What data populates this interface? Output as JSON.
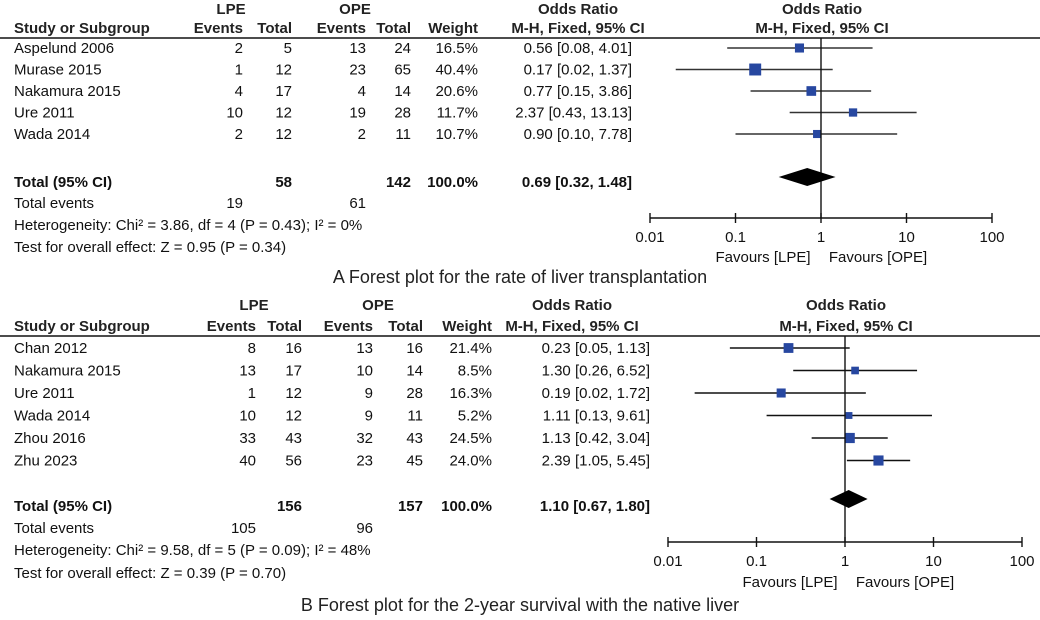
{
  "chart_data": [
    {
      "type": "forest",
      "caption": "A Forest plot for the rate of liver transplantation",
      "headers": {
        "group_lpe": "LPE",
        "group_ope": "OPE",
        "study": "Study or Subgroup",
        "events_lpe": "Events",
        "total_lpe": "Total",
        "events_ope": "Events",
        "total_ope": "Total",
        "weight": "Weight",
        "or_top": "Odds Ratio",
        "or_sub": "M-H, Fixed, 95% CI",
        "plot_top": "Odds Ratio",
        "plot_sub": "M-H, Fixed, 95% CI"
      },
      "studies": [
        {
          "name": "Aspelund 2006",
          "e1": "2",
          "n1": "5",
          "e2": "13",
          "n2": "24",
          "weight": "16.5%",
          "ci_text": "0.56 [0.08, 4.01]",
          "or": 0.56,
          "lo": 0.08,
          "hi": 4.01,
          "w": 16.5
        },
        {
          "name": "Murase 2015",
          "e1": "1",
          "n1": "12",
          "e2": "23",
          "n2": "65",
          "weight": "40.4%",
          "ci_text": "0.17 [0.02, 1.37]",
          "or": 0.17,
          "lo": 0.02,
          "hi": 1.37,
          "w": 40.4
        },
        {
          "name": "Nakamura 2015",
          "e1": "4",
          "n1": "17",
          "e2": "4",
          "n2": "14",
          "weight": "20.6%",
          "ci_text": "0.77 [0.15, 3.86]",
          "or": 0.77,
          "lo": 0.15,
          "hi": 3.86,
          "w": 20.6
        },
        {
          "name": "Ure 2011",
          "e1": "10",
          "n1": "12",
          "e2": "19",
          "n2": "28",
          "weight": "11.7%",
          "ci_text": "2.37 [0.43, 13.13]",
          "or": 2.37,
          "lo": 0.43,
          "hi": 13.13,
          "w": 11.7
        },
        {
          "name": "Wada 2014",
          "e1": "2",
          "n1": "12",
          "e2": "2",
          "n2": "11",
          "weight": "10.7%",
          "ci_text": "0.90 [0.10, 7.78]",
          "or": 0.9,
          "lo": 0.1,
          "hi": 7.78,
          "w": 10.7
        }
      ],
      "total": {
        "label": "Total (95% CI)",
        "n1": "58",
        "n2": "142",
        "weight": "100.0%",
        "ci_text": "0.69 [0.32, 1.48]",
        "or": 0.69,
        "lo": 0.32,
        "hi": 1.48
      },
      "total_events": {
        "label": "Total events",
        "e1": "19",
        "e2": "61"
      },
      "heterogeneity": "Heterogeneity: Chi² = 3.86, df = 4 (P = 0.43); I² = 0%",
      "overall_effect": "Test for overall effect: Z = 0.95 (P = 0.34)",
      "axis": {
        "scale": "log",
        "ticks": [
          0.01,
          0.1,
          1,
          10,
          100
        ],
        "tick_labels": [
          "0.01",
          "0.1",
          "1",
          "10",
          "100"
        ]
      },
      "favours_left": "Favours [LPE]",
      "favours_right": "Favours [OPE]"
    },
    {
      "type": "forest",
      "caption": "B Forest plot for the 2-year survival with the native liver",
      "headers": {
        "group_lpe": "LPE",
        "group_ope": "OPE",
        "study": "Study or Subgroup",
        "events_lpe": "Events",
        "total_lpe": "Total",
        "events_ope": "Events",
        "total_ope": "Total",
        "weight": "Weight",
        "or_top": "Odds Ratio",
        "or_sub": "M-H, Fixed, 95% CI",
        "plot_top": "Odds Ratio",
        "plot_sub": "M-H, Fixed, 95% CI"
      },
      "studies": [
        {
          "name": "Chan 2012",
          "e1": "8",
          "n1": "16",
          "e2": "13",
          "n2": "16",
          "weight": "21.4%",
          "ci_text": "0.23 [0.05, 1.13]",
          "or": 0.23,
          "lo": 0.05,
          "hi": 1.13,
          "w": 21.4
        },
        {
          "name": "Nakamura 2015",
          "e1": "13",
          "n1": "17",
          "e2": "10",
          "n2": "14",
          "weight": "8.5%",
          "ci_text": "1.30 [0.26, 6.52]",
          "or": 1.3,
          "lo": 0.26,
          "hi": 6.52,
          "w": 8.5
        },
        {
          "name": "Ure 2011",
          "e1": "1",
          "n1": "12",
          "e2": "9",
          "n2": "28",
          "weight": "16.3%",
          "ci_text": "0.19 [0.02, 1.72]",
          "or": 0.19,
          "lo": 0.02,
          "hi": 1.72,
          "w": 16.3
        },
        {
          "name": "Wada 2014",
          "e1": "10",
          "n1": "12",
          "e2": "9",
          "n2": "11",
          "weight": "5.2%",
          "ci_text": "1.11 [0.13, 9.61]",
          "or": 1.11,
          "lo": 0.13,
          "hi": 9.61,
          "w": 5.2
        },
        {
          "name": "Zhou 2016",
          "e1": "33",
          "n1": "43",
          "e2": "32",
          "n2": "43",
          "weight": "24.5%",
          "ci_text": "1.13 [0.42, 3.04]",
          "or": 1.13,
          "lo": 0.42,
          "hi": 3.04,
          "w": 24.5
        },
        {
          "name": "Zhu 2023",
          "e1": "40",
          "n1": "56",
          "e2": "23",
          "n2": "45",
          "weight": "24.0%",
          "ci_text": "2.39 [1.05, 5.45]",
          "or": 2.39,
          "lo": 1.05,
          "hi": 5.45,
          "w": 24.0
        }
      ],
      "total": {
        "label": "Total (95% CI)",
        "n1": "156",
        "n2": "157",
        "weight": "100.0%",
        "ci_text": "1.10 [0.67, 1.80]",
        "or": 1.1,
        "lo": 0.67,
        "hi": 1.8
      },
      "total_events": {
        "label": "Total events",
        "e1": "105",
        "e2": "96"
      },
      "heterogeneity": "Heterogeneity: Chi² = 9.58, df = 5 (P = 0.09); I² = 48%",
      "overall_effect": "Test for overall effect: Z = 0.39 (P = 0.70)",
      "axis": {
        "scale": "log",
        "ticks": [
          0.01,
          0.1,
          1,
          10,
          100
        ],
        "tick_labels": [
          "0.01",
          "0.1",
          "1",
          "10",
          "100"
        ]
      },
      "favours_left": "Favours [LPE]",
      "favours_right": "Favours [OPE]"
    }
  ],
  "colors": {
    "marker": "#2747a0",
    "line": "#111111",
    "ci_line_a": "#333333"
  }
}
